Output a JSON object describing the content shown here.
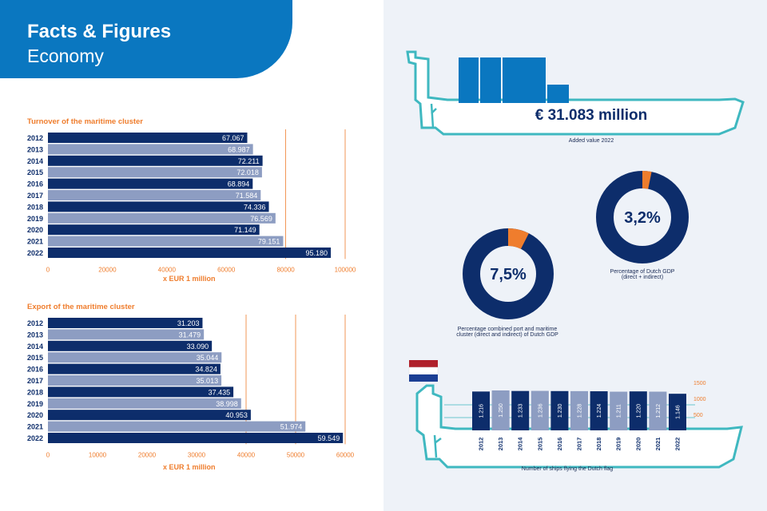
{
  "header": {
    "title": "Facts & Figures",
    "subtitle": "Economy"
  },
  "colors": {
    "navy": "#0d2d6b",
    "light": "#8d9dc2",
    "orange": "#ef7d2d",
    "blue": "#0a77c0",
    "teal": "#3fb8c0"
  },
  "chart_data": [
    {
      "type": "bar",
      "orientation": "horizontal",
      "title": "Turnover of the maritime cluster",
      "xlabel": "x EUR 1 million",
      "categories": [
        "2012",
        "2013",
        "2014",
        "2015",
        "2016",
        "2017",
        "2018",
        "2019",
        "2020",
        "2021",
        "2022"
      ],
      "values": [
        67067,
        68987,
        72211,
        72018,
        68894,
        71584,
        74336,
        76569,
        71149,
        79151,
        95180
      ],
      "labels": [
        "67.067",
        "68.987",
        "72.211",
        "72.018",
        "68.894",
        "71.584",
        "74.336",
        "76.569",
        "71.149",
        "79.151",
        "95.180"
      ],
      "xlim": [
        0,
        100000
      ],
      "ticks": [
        0,
        20000,
        40000,
        60000,
        80000,
        100000
      ],
      "tick_labels": [
        "0",
        "20000",
        "40000",
        "60000",
        "80000",
        "100000"
      ],
      "grid": "vertical lines at 80000 and 100000"
    },
    {
      "type": "bar",
      "orientation": "horizontal",
      "title": "Export of the maritime cluster",
      "xlabel": "x EUR 1 million",
      "categories": [
        "2012",
        "2013",
        "2014",
        "2015",
        "2016",
        "2017",
        "2018",
        "2019",
        "2020",
        "2021",
        "2022"
      ],
      "values": [
        31203,
        31479,
        33090,
        35044,
        34824,
        35013,
        37435,
        38998,
        40953,
        51974,
        59549
      ],
      "labels": [
        "31.203",
        "31.479",
        "33.090",
        "35.044",
        "34.824",
        "35.013",
        "37.435",
        "38.998",
        "40.953",
        "51.974",
        "59.549"
      ],
      "xlim": [
        0,
        60000
      ],
      "ticks": [
        0,
        10000,
        20000,
        30000,
        40000,
        50000,
        60000
      ],
      "tick_labels": [
        "0",
        "10000",
        "20000",
        "30000",
        "40000",
        "50000",
        "60000"
      ],
      "grid": "vertical lines at 40000, 50000 and 60000"
    },
    {
      "type": "pie",
      "style": "donut",
      "center_label": "3,2%",
      "values": [
        3.2,
        96.8
      ],
      "caption_lines": [
        "Percentage of Dutch GDP",
        "(direct + indirect)"
      ]
    },
    {
      "type": "pie",
      "style": "donut",
      "center_label": "7,5%",
      "values": [
        7.5,
        92.5
      ],
      "caption_lines": [
        "Percentage combined port and maritime",
        "cluster (direct and indirect) of Dutch GDP"
      ]
    },
    {
      "type": "bar",
      "title": "Number of ships flying the Dutch flag",
      "categories": [
        "2012",
        "2013",
        "2014",
        "2015",
        "2016",
        "2017",
        "2018",
        "2019",
        "2020",
        "2021",
        "2022"
      ],
      "values": [
        1216,
        1250,
        1233,
        1236,
        1230,
        1228,
        1224,
        1211,
        1220,
        1212,
        1146
      ],
      "labels": [
        "1.216",
        "1.250",
        "1.233",
        "1.236",
        "1.230",
        "1.228",
        "1.224",
        "1.211",
        "1.220",
        "1.212",
        "1.146"
      ],
      "ylim": [
        0,
        1500
      ],
      "ticks": [
        500,
        1000,
        1500
      ],
      "tick_labels": [
        "500",
        "1000",
        "1500"
      ]
    }
  ],
  "added_value": {
    "amount": "€ 31.083 million",
    "caption": "Added value 2022"
  }
}
